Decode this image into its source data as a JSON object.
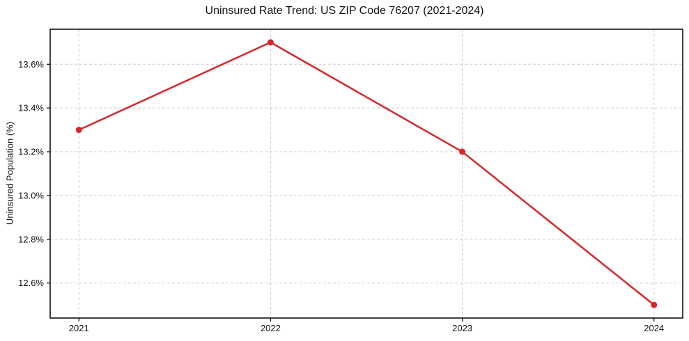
{
  "chart_data": {
    "type": "line",
    "title": "Uninsured Rate Trend: US ZIP Code 76207 (2021-2024)",
    "xlabel": "",
    "ylabel": "Uninsured Population (%)",
    "x": [
      2021,
      2022,
      2023,
      2024
    ],
    "x_tick_labels": [
      "2021",
      "2022",
      "2023",
      "2024"
    ],
    "series": [
      {
        "name": "Uninsured Rate",
        "values": [
          13.3,
          13.7,
          13.2,
          12.5
        ]
      }
    ],
    "y_ticks": [
      12.6,
      12.8,
      13.0,
      13.2,
      13.4,
      13.6
    ],
    "y_tick_labels": [
      "12.6%",
      "12.8%",
      "13.0%",
      "13.2%",
      "13.4%",
      "13.6%"
    ],
    "xlim": [
      2020.85,
      2024.15
    ],
    "ylim": [
      12.44,
      13.76
    ],
    "grid": true,
    "grid_style": "dashed",
    "legend_position": "none",
    "line_color": "#d62728",
    "marker": "circle",
    "marker_color": "#d62728",
    "grid_color": "#cccccc",
    "axis_color": "#000000",
    "background_color": "#ffffff"
  }
}
